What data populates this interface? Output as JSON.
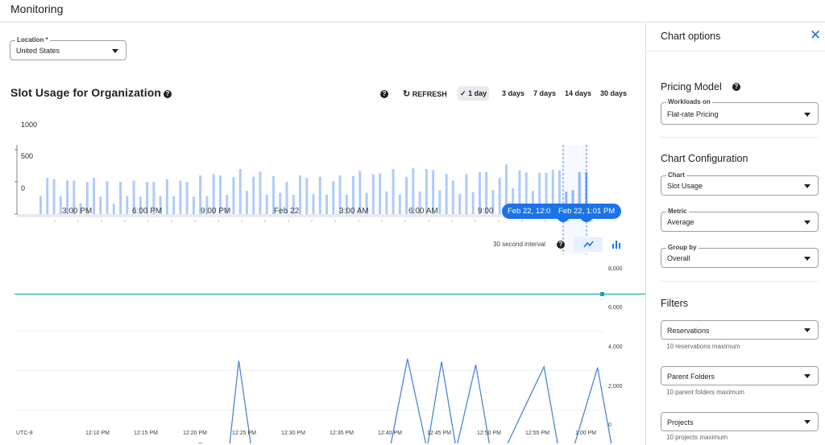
{
  "app": {
    "title": "Monitoring"
  },
  "location": {
    "label": "Location *",
    "value": "United States"
  },
  "chart_header": {
    "title": "Slot Usage for Organization",
    "refresh_label": "REFRESH",
    "ranges": [
      {
        "label": "1 day",
        "active": true
      },
      {
        "label": "3 days",
        "active": false
      },
      {
        "label": "7 days",
        "active": false
      },
      {
        "label": "14 days",
        "active": false
      },
      {
        "label": "30 days",
        "active": false
      }
    ]
  },
  "overview": {
    "y_ticks": [
      "1000",
      "500",
      "0"
    ],
    "x_ticks": [
      "3:00 PM",
      "6:00 PM",
      "9:00 PM",
      "Feb 22",
      "3:00 AM",
      "6:00 AM",
      "9:00"
    ],
    "selection_start": "Feb 22, 12:0",
    "selection_end": "Feb 22, 1:01 PM"
  },
  "detail": {
    "interval_label": "30 second interval",
    "y_ticks": [
      "8,000",
      "6,000",
      "4,000",
      "2,000",
      "0"
    ],
    "x_ticks": [
      "UTC-8",
      "12:10 PM",
      "12:15 PM",
      "12:20 PM",
      "12:25 PM",
      "12:30 PM",
      "12:35 PM",
      "12:40 PM",
      "12:45 PM",
      "12:50 PM",
      "12:55 PM",
      "1:00 PM"
    ]
  },
  "side_panel": {
    "title": "Chart options",
    "pricing_heading": "Pricing Model",
    "workloads": {
      "label": "Workloads on",
      "value": "Flat-rate Pricing"
    },
    "config_heading": "Chart Configuration",
    "chart": {
      "label": "Chart",
      "value": "Slot Usage"
    },
    "metric": {
      "label": "Metric",
      "value": "Average"
    },
    "group_by": {
      "label": "Group by",
      "value": "Overall"
    },
    "filters_heading": "Filters",
    "filters": [
      {
        "label": "Reservations",
        "helper": "10 reservations maximum"
      },
      {
        "label": "Parent Folders",
        "helper": "10 parent folders maximum"
      },
      {
        "label": "Projects",
        "helper": "10 projects maximum"
      }
    ]
  },
  "colors": {
    "accent": "#1a73e8",
    "bar_light": "#aecbfa",
    "bar_dark": "#4285f4",
    "line": "#4a86d8",
    "top_line": "#12a4af"
  },
  "chart_data": [
    {
      "type": "bar",
      "y_ticks": [
        0,
        500,
        1000
      ],
      "ylim": [
        0,
        1000
      ],
      "x_ticks": [
        "3:00 PM",
        "6:00 PM",
        "9:00 PM",
        "Feb 22",
        "3:00 AM",
        "6:00 AM",
        "9:00"
      ],
      "values": [
        280,
        560,
        540,
        280,
        520,
        520,
        170,
        500,
        560,
        270,
        510,
        160,
        500,
        280,
        520,
        270,
        500,
        500,
        280,
        540,
        280,
        520,
        500,
        270,
        600,
        280,
        620,
        600,
        300,
        570,
        700,
        360,
        580,
        660,
        300,
        590,
        330,
        500,
        300,
        600,
        560,
        310,
        580,
        300,
        510,
        600,
        300,
        590,
        670,
        330,
        620,
        630,
        350,
        700,
        300,
        580,
        710,
        350,
        700,
        680,
        370,
        620,
        520,
        310,
        620,
        340,
        650,
        650,
        370,
        560,
        770,
        400,
        680,
        650,
        360,
        640,
        640,
        690,
        680,
        350,
        370,
        650,
        650
      ],
      "selection_start": "Feb 22, 12:0",
      "selection_end": "Feb 22, 1:01 PM"
    },
    {
      "type": "line",
      "ylim": [
        0,
        8000
      ],
      "y_ticks": [
        0,
        2000,
        4000,
        6000,
        8000
      ],
      "x_ticks": [
        "12:10 PM",
        "12:15 PM",
        "12:20 PM",
        "12:25 PM",
        "12:30 PM",
        "12:35 PM",
        "12:40 PM",
        "12:45 PM",
        "12:50 PM",
        "12:55 PM",
        "1:00 PM"
      ],
      "series": [
        {
          "x_minutes_after_1210": [
            -8.5,
            -1,
            0,
            1,
            8,
            9,
            10.5,
            12,
            13.5,
            14.5,
            15.8,
            17,
            20,
            30,
            31.8,
            33.8,
            35.3,
            36.8,
            38.8,
            40.3,
            41.8,
            45.8,
            47.3,
            48.8,
            51.3,
            52.8,
            54.3,
            57.5
          ],
          "values": [
            0,
            0,
            180,
            0,
            0,
            0,
            300,
            150,
            0,
            4500,
            0,
            0,
            0,
            0,
            4600,
            0,
            4450,
            0,
            4300,
            0,
            0,
            4200,
            0,
            0,
            4150,
            0,
            0,
            0
          ]
        },
        {
          "x_minutes_after_1210": [
            -8.5,
            57.5
          ],
          "values": [
            7900,
            7900
          ]
        }
      ]
    }
  ]
}
